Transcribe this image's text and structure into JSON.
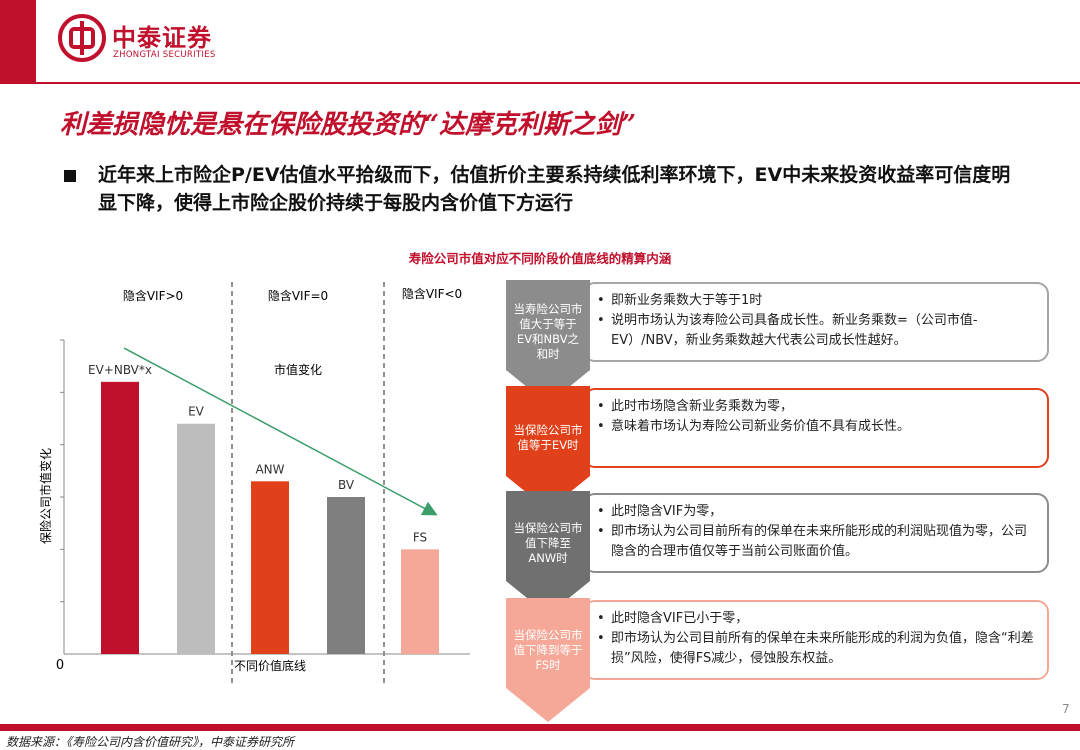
{
  "header": {
    "logo_cn": "中泰证券",
    "logo_en": "ZHONGTAI SECURITIES"
  },
  "title": "利差损隐忧是悬在保险股投资的“达摩克利斯之剑”",
  "bullet": "近年来上市险企P/EV估值水平拾级而下，估值折价主要系持续低利率环境下，EV中未来投资收益率可信度明显下降，使得上市险企股价持续于每股内含价值下方运行",
  "chart_title": "寿险公司市值对应不同阶段价值底线的精算内涵",
  "chart_data": {
    "type": "bar",
    "categories": [
      "EV+NBV*x",
      "EV",
      "ANW",
      "BV",
      "FS"
    ],
    "values": [
      5.2,
      4.4,
      3.3,
      3.0,
      2.0
    ],
    "colors": [
      "#c0102c",
      "#bdbdbd",
      "#e1411a",
      "#7f7f7f",
      "#f5a898"
    ],
    "ylabel": "保险公司市值变化",
    "xlabel": "不同价值底线",
    "origin_label": "0",
    "ylim": [
      0,
      6
    ],
    "region_labels": [
      "隐含VIF>0",
      "隐含VIF=0",
      "隐含VIF<0"
    ],
    "annotation": "市值变化",
    "trend_arrow": "green, declining from top-left to bottom-right"
  },
  "steps": [
    {
      "chevron": "当寿险公司市值大于等于EV和NBV之和时",
      "chevron_lines": [
        "当寿险公司市",
        "值大于等于",
        "EV和NBV之",
        "和时"
      ],
      "chevron_color": "#8c8c8c",
      "border_color": "#a6a6a6",
      "points": [
        "即新业务乘数大于等于1时",
        "说明市场认为该寿险公司具备成长性。新业务乘数=（公司市值-EV）/NBV，新业务乘数越大代表公司成长性越好。"
      ]
    },
    {
      "chevron": "当保险公司市值等于EV时",
      "chevron_lines": [
        "当保险公司市",
        "值等于EV时"
      ],
      "chevron_color": "#e1411a",
      "border_color": "#e1411a",
      "points": [
        "此时市场隐含新业务乘数为零，",
        "意味着市场认为寿险公司新业务价值不具有成长性。"
      ]
    },
    {
      "chevron": "当保险公司市值下降至ANW时",
      "chevron_lines": [
        "当保险公司市",
        "值下降至",
        "ANW时"
      ],
      "chevron_color": "#707070",
      "border_color": "#8c8c8c",
      "points": [
        "此时隐含VIF为零，",
        "即市场认为公司目前所有的保单在未来所能形成的利润贴现值为零，公司隐含的合理市值仅等于当前公司账面价值。"
      ]
    },
    {
      "chevron": "当保险公司市值下降到等于FS时",
      "chevron_lines": [
        "当保险公司市",
        "值下降到等于",
        "FS时"
      ],
      "chevron_color": "#f5a898",
      "border_color": "#f5a898",
      "points": [
        "此时隐含VIF已小于零，",
        "即市场认为公司目前所有的保单在未来所能形成的利润为负值，隐含“利差损”风险，使得FS减少，侵蚀股东权益。"
      ]
    }
  ],
  "footer": "数据来源：《寿险公司内含价值研究》，中泰证券研究所",
  "page_number": "7"
}
